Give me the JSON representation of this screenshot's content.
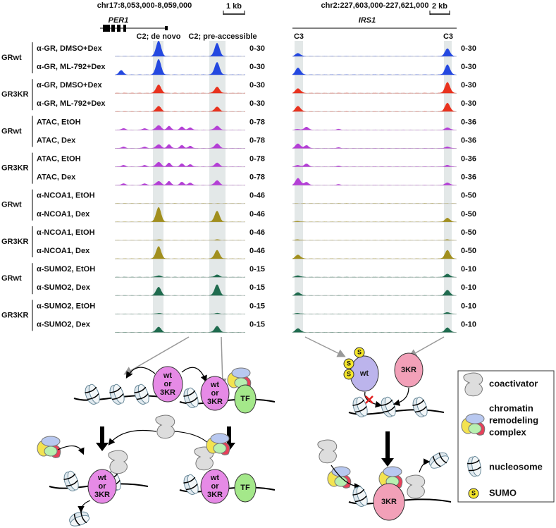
{
  "loci": [
    {
      "coords": "chr17:8,053,000-8,059,000",
      "scale": "1 kb",
      "gene": "PER1",
      "regions": [
        "C2; de novo",
        "C2; pre-accessible"
      ]
    },
    {
      "coords": "chr2:227,603,000-227,621,000",
      "scale": "2 kb",
      "gene": "IRS1",
      "regions": [
        "C3",
        "C3"
      ]
    }
  ],
  "groups": [
    {
      "label": "GRwt",
      "color": "#2448e0",
      "tracks": [
        {
          "name": "α-GR, DMSO+Dex",
          "ranges": [
            "0-30",
            "0-30"
          ]
        },
        {
          "name": "α-GR, ML-792+Dex",
          "ranges": [
            "0-30",
            "0-30"
          ]
        }
      ]
    },
    {
      "label": "GR3KR",
      "color": "#e8321e",
      "tracks": [
        {
          "name": "α-GR, DMSO+Dex",
          "ranges": [
            "0-30",
            "0-30"
          ]
        },
        {
          "name": "α-GR, ML-792+Dex",
          "ranges": [
            "0-30",
            "0-30"
          ]
        }
      ]
    },
    {
      "label": "GRwt",
      "color": "#b43fd6",
      "tracks": [
        {
          "name": "ATAC, EtOH",
          "ranges": [
            "0-78",
            "0-36"
          ]
        },
        {
          "name": "ATAC, Dex",
          "ranges": [
            "0-78",
            "0-36"
          ]
        }
      ]
    },
    {
      "label": "GR3KR",
      "color": "#b43fd6",
      "tracks": [
        {
          "name": "ATAC, EtOH",
          "ranges": [
            "0-78",
            "0-36"
          ]
        },
        {
          "name": "ATAC, Dex",
          "ranges": [
            "0-78",
            "0-36"
          ]
        }
      ]
    },
    {
      "label": "GRwt",
      "color": "#a18f1e",
      "tracks": [
        {
          "name": "α-NCOA1, EtOH",
          "ranges": [
            "0-46",
            "0-50"
          ]
        },
        {
          "name": "α-NCOA1, Dex",
          "ranges": [
            "0-46",
            "0-50"
          ]
        }
      ]
    },
    {
      "label": "GR3KR",
      "color": "#a18f1e",
      "tracks": [
        {
          "name": "α-NCOA1, EtOH",
          "ranges": [
            "0-46",
            "0-50"
          ]
        },
        {
          "name": "α-NCOA1, Dex",
          "ranges": [
            "0-46",
            "0-50"
          ]
        }
      ]
    },
    {
      "label": "GRwt",
      "color": "#1f6b4e",
      "tracks": [
        {
          "name": "α-SUMO2, EtOH",
          "ranges": [
            "0-15",
            "0-10"
          ]
        },
        {
          "name": "α-SUMO2, Dex",
          "ranges": [
            "0-15",
            "0-10"
          ]
        }
      ]
    },
    {
      "label": "GR3KR",
      "color": "#1f6b4e",
      "tracks": [
        {
          "name": "α-SUMO2, EtOH",
          "ranges": [
            "0-15",
            "0-10"
          ]
        },
        {
          "name": "α-SUMO2, Dex",
          "ranges": [
            "0-15",
            "0-10"
          ]
        }
      ]
    }
  ],
  "diagram": {
    "either": [
      "wt",
      "or",
      "3KR"
    ],
    "tf": "TF",
    "wt": "wt",
    "kr": "3KR",
    "sumo": "S"
  },
  "legend": [
    [
      "coactivator"
    ],
    [
      "chromatin",
      "remodeling",
      "complex"
    ],
    [
      "nucleosome"
    ],
    [
      "SUMO"
    ]
  ]
}
